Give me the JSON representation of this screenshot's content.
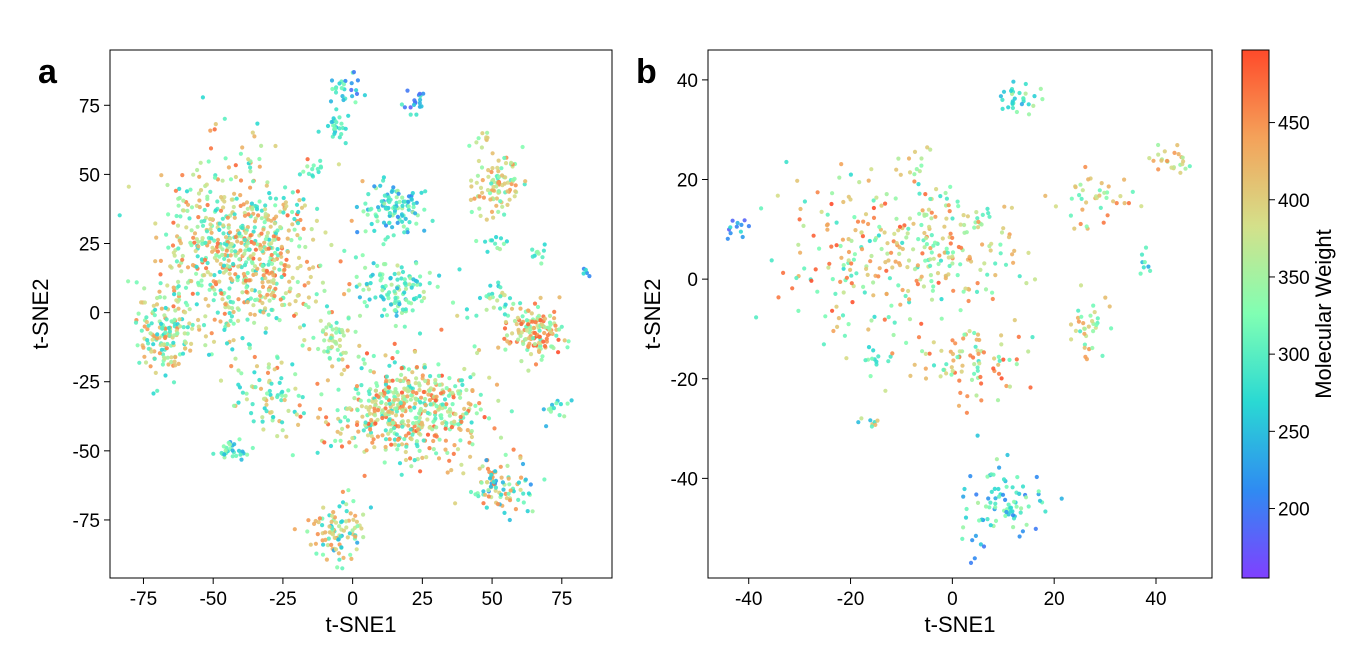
{
  "colormap": {
    "name": "rainbow",
    "stops": [
      "#8040ff",
      "#2f8bf2",
      "#2ad9d3",
      "#80ffb3",
      "#d4e08a",
      "#f4a25a",
      "#ff4a2a"
    ]
  },
  "colorbar": {
    "label": "Molecular Weight",
    "range": [
      155,
      497
    ],
    "ticks": [
      200,
      250,
      300,
      350,
      400,
      450
    ]
  },
  "chart_data": [
    {
      "type": "scatter",
      "panel": "a",
      "xlabel": "t-SNE1",
      "ylabel": "t-SNE2",
      "xlim": [
        -87,
        93
      ],
      "ylim": [
        -96,
        95
      ],
      "xticks": [
        -75,
        -50,
        -25,
        0,
        25,
        50,
        75
      ],
      "yticks": [
        -75,
        -50,
        -25,
        0,
        25,
        50,
        75
      ],
      "clusters": [
        {
          "x": -40,
          "y": 22,
          "sx": 14,
          "sy": 16,
          "n": 700,
          "mw": [
            260,
            480
          ]
        },
        {
          "x": 20,
          "y": -35,
          "sx": 14,
          "sy": 9,
          "n": 520,
          "mw": [
            270,
            490
          ]
        },
        {
          "x": -67,
          "y": -8,
          "sx": 5,
          "sy": 7,
          "n": 150,
          "mw": [
            260,
            460
          ]
        },
        {
          "x": 65,
          "y": -7,
          "sx": 5,
          "sy": 5,
          "n": 150,
          "mw": [
            300,
            497
          ]
        },
        {
          "x": 52,
          "y": 46,
          "sx": 5,
          "sy": 5,
          "n": 100,
          "mw": [
            290,
            460
          ]
        },
        {
          "x": 15,
          "y": 38,
          "sx": 6,
          "sy": 5,
          "n": 110,
          "mw": [
            210,
            360
          ]
        },
        {
          "x": 15,
          "y": 8,
          "sx": 8,
          "sy": 6,
          "n": 120,
          "mw": [
            240,
            380
          ]
        },
        {
          "x": 52,
          "y": -63,
          "sx": 6,
          "sy": 5,
          "n": 90,
          "mw": [
            210,
            470
          ]
        },
        {
          "x": -6,
          "y": -80,
          "sx": 6,
          "sy": 5,
          "n": 100,
          "mw": [
            230,
            460
          ]
        },
        {
          "x": -6,
          "y": -10,
          "sx": 4,
          "sy": 5,
          "n": 50,
          "mw": [
            300,
            420
          ]
        },
        {
          "x": -30,
          "y": -32,
          "sx": 6,
          "sy": 8,
          "n": 70,
          "mw": [
            260,
            430
          ]
        },
        {
          "x": -43,
          "y": -50,
          "sx": 3,
          "sy": 2,
          "n": 30,
          "mw": [
            220,
            350
          ]
        },
        {
          "x": -2,
          "y": 80,
          "sx": 2.5,
          "sy": 3,
          "n": 25,
          "mw": [
            160,
            330
          ]
        },
        {
          "x": -6,
          "y": 68,
          "sx": 2,
          "sy": 3,
          "n": 25,
          "mw": [
            240,
            330
          ]
        },
        {
          "x": 22,
          "y": 76,
          "sx": 2,
          "sy": 2,
          "n": 18,
          "mw": [
            170,
            300
          ]
        },
        {
          "x": 50,
          "y": 26,
          "sx": 2,
          "sy": 1.5,
          "n": 12,
          "mw": [
            260,
            360
          ]
        },
        {
          "x": 67,
          "y": 21,
          "sx": 2,
          "sy": 1.5,
          "n": 10,
          "mw": [
            260,
            350
          ]
        },
        {
          "x": 73,
          "y": -35,
          "sx": 3,
          "sy": 2,
          "n": 15,
          "mw": [
            230,
            350
          ]
        },
        {
          "x": 50,
          "y": 3,
          "sx": 5,
          "sy": 4,
          "n": 30,
          "mw": [
            260,
            400
          ]
        },
        {
          "x": -14,
          "y": 52,
          "sx": 2,
          "sy": 2,
          "n": 12,
          "mw": [
            280,
            360
          ]
        },
        {
          "x": 48,
          "y": 63,
          "sx": 2,
          "sy": 1,
          "n": 8,
          "mw": [
            300,
            420
          ]
        },
        {
          "x": 84,
          "y": 15,
          "sx": 1,
          "sy": 1.5,
          "n": 5,
          "mw": [
            200,
            280
          ]
        }
      ]
    },
    {
      "type": "scatter",
      "panel": "b",
      "xlabel": "t-SNE1",
      "ylabel": "t-SNE2",
      "xlim": [
        -48,
        51
      ],
      "ylim": [
        -60,
        46
      ],
      "xticks": [
        -40,
        -20,
        0,
        20,
        40
      ],
      "yticks": [
        -40,
        -20,
        0,
        20,
        40
      ],
      "clusters": [
        {
          "x": -15,
          "y": 5,
          "sx": 9,
          "sy": 8,
          "n": 220,
          "mw": [
            270,
            497
          ]
        },
        {
          "x": 1,
          "y": 5,
          "sx": 6,
          "sy": 7,
          "n": 120,
          "mw": [
            290,
            470
          ]
        },
        {
          "x": 3,
          "y": -17,
          "sx": 6,
          "sy": 4,
          "n": 80,
          "mw": [
            280,
            497
          ]
        },
        {
          "x": 11,
          "y": -45,
          "sx": 4,
          "sy": 4,
          "n": 80,
          "mw": [
            200,
            360
          ]
        },
        {
          "x": 28,
          "y": 16,
          "sx": 4,
          "sy": 3,
          "n": 40,
          "mw": [
            300,
            470
          ]
        },
        {
          "x": 43,
          "y": 24,
          "sx": 2,
          "sy": 1.5,
          "n": 25,
          "mw": [
            300,
            460
          ]
        },
        {
          "x": 27,
          "y": -10,
          "sx": 2.5,
          "sy": 3,
          "n": 35,
          "mw": [
            290,
            460
          ]
        },
        {
          "x": 13,
          "y": 36,
          "sx": 2,
          "sy": 2,
          "n": 30,
          "mw": [
            230,
            360
          ]
        },
        {
          "x": -8,
          "y": 24,
          "sx": 1.5,
          "sy": 1.5,
          "n": 12,
          "mw": [
            320,
            470
          ]
        },
        {
          "x": -42,
          "y": 10,
          "sx": 1.5,
          "sy": 1,
          "n": 12,
          "mw": [
            170,
            290
          ]
        },
        {
          "x": 38,
          "y": 4,
          "sx": 1,
          "sy": 1.5,
          "n": 8,
          "mw": [
            230,
            320
          ]
        },
        {
          "x": -16,
          "y": -29,
          "sx": 1.2,
          "sy": 0.8,
          "n": 8,
          "mw": [
            230,
            420
          ]
        },
        {
          "x": -16,
          "y": -16,
          "sx": 1,
          "sy": 2,
          "n": 10,
          "mw": [
            260,
            340
          ]
        },
        {
          "x": 5,
          "y": -53,
          "sx": 1,
          "sy": 1.5,
          "n": 6,
          "mw": [
            170,
            260
          ]
        }
      ]
    }
  ]
}
